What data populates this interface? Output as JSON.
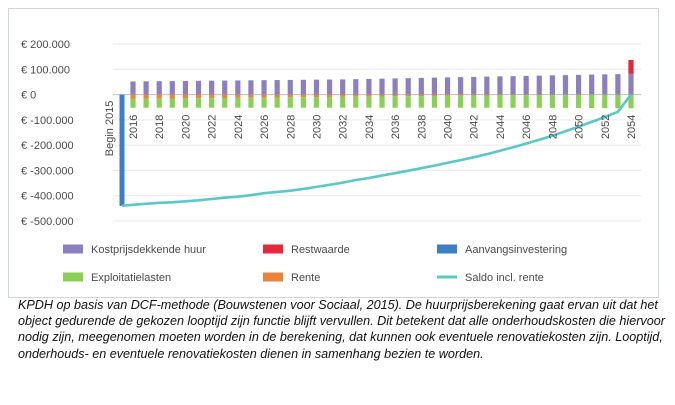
{
  "chart_data": {
    "type": "bar",
    "title": "",
    "xlabel": "",
    "ylabel": "",
    "ylim": [
      -500000,
      200000
    ],
    "y_ticks": [
      200000,
      100000,
      0,
      -100000,
      -200000,
      -300000,
      -400000,
      -500000
    ],
    "y_tick_labels": [
      "€ 200.000",
      "€ 100.000",
      "€ 0",
      "€ -100.000",
      "€ -200.000",
      "€ -300.000",
      "€ -400.000",
      "€ -500.000"
    ],
    "x_tick_labels": [
      "Begin 2015",
      "2016",
      "2018",
      "2020",
      "2022",
      "2024",
      "2026",
      "2028",
      "2030",
      "2032",
      "2034",
      "2036",
      "2038",
      "2040",
      "2042",
      "2044",
      "2046",
      "2048",
      "2050",
      "2052",
      "2054"
    ],
    "years": [
      2016,
      2017,
      2018,
      2019,
      2020,
      2021,
      2022,
      2023,
      2024,
      2025,
      2026,
      2027,
      2028,
      2029,
      2030,
      2031,
      2032,
      2033,
      2034,
      2035,
      2036,
      2037,
      2038,
      2039,
      2040,
      2041,
      2042,
      2043,
      2044,
      2045,
      2046,
      2047,
      2048,
      2049,
      2050,
      2051,
      2052,
      2053,
      2054
    ],
    "series": [
      {
        "name": "Kostprijsdekkende huur",
        "color": "#8c7fbf",
        "values": [
          52000,
          52500,
          53000,
          53500,
          54000,
          54500,
          55000,
          55500,
          56000,
          56500,
          57000,
          57500,
          58000,
          58500,
          59000,
          59500,
          60000,
          61000,
          62000,
          63000,
          64000,
          65000,
          66000,
          67000,
          68000,
          69000,
          70000,
          71000,
          72000,
          73000,
          74000,
          75000,
          76000,
          77000,
          78000,
          79000,
          80000,
          81000,
          82000
        ]
      },
      {
        "name": "Exploitatielasten",
        "color": "#8bcf57",
        "values": [
          -35000,
          -35500,
          -36000,
          -36500,
          -37000,
          -37500,
          -38000,
          -38500,
          -39000,
          -39500,
          -40000,
          -40500,
          -41000,
          -41500,
          -42000,
          -42500,
          -43000,
          -43500,
          -44000,
          -44500,
          -45000,
          -45500,
          -46000,
          -46500,
          -47000,
          -47500,
          -48000,
          -48500,
          -49000,
          -49500,
          -50000,
          -50500,
          -51000,
          -51500,
          -52000,
          -52500,
          -53000,
          -53500,
          -54000
        ]
      },
      {
        "name": "Rente",
        "color": "#e8853a",
        "values": [
          -17000,
          -16500,
          -16000,
          -15500,
          -15000,
          -14500,
          -14000,
          -13500,
          -13000,
          -12500,
          -12000,
          -11500,
          -11000,
          -10500,
          -10000,
          -9500,
          -9000,
          -8500,
          -8000,
          -7500,
          -7000,
          -6500,
          -6000,
          -5500,
          -5000,
          -4500,
          -4000,
          -3600,
          -3200,
          -2800,
          -2400,
          -2000,
          -1600,
          -1200,
          -900,
          -600,
          -400,
          -200,
          -100
        ]
      },
      {
        "name": "Restwaarde",
        "color": "#e3283a",
        "values": [
          0,
          0,
          0,
          0,
          0,
          0,
          0,
          0,
          0,
          0,
          0,
          0,
          0,
          0,
          0,
          0,
          0,
          0,
          0,
          0,
          0,
          0,
          0,
          0,
          0,
          0,
          0,
          0,
          0,
          0,
          0,
          0,
          0,
          0,
          0,
          0,
          0,
          0,
          55000
        ]
      },
      {
        "name": "Aanvangsinvestering",
        "color": "#3d7fc4",
        "start_label": "Begin 2015",
        "value": -440000
      },
      {
        "name": "Saldo incl. rente",
        "color": "#5cc7c9",
        "x": [
          2015,
          2016,
          2017,
          2018,
          2019,
          2020,
          2021,
          2022,
          2023,
          2024,
          2025,
          2026,
          2027,
          2028,
          2029,
          2030,
          2031,
          2032,
          2033,
          2034,
          2035,
          2036,
          2037,
          2038,
          2039,
          2040,
          2041,
          2042,
          2043,
          2044,
          2045,
          2046,
          2047,
          2048,
          2049,
          2050,
          2051,
          2052,
          2053,
          2054
        ],
        "values": [
          -440000,
          -436000,
          -432000,
          -428000,
          -426000,
          -422000,
          -418000,
          -413000,
          -408000,
          -404000,
          -398000,
          -390000,
          -385000,
          -380000,
          -373000,
          -365000,
          -357000,
          -348000,
          -338000,
          -330000,
          -320000,
          -311000,
          -301000,
          -291000,
          -281000,
          -270000,
          -259000,
          -248000,
          -236000,
          -222000,
          -208000,
          -194000,
          -179000,
          -163000,
          -145000,
          -127000,
          -108000,
          -89000,
          -68000,
          0
        ]
      }
    ],
    "legend": {
      "placement": "bottom",
      "items": [
        {
          "label": "Kostprijsdekkende huur",
          "color": "#8c7fbf"
        },
        {
          "label": "Restwaarde",
          "color": "#e3283a"
        },
        {
          "label": "Aanvangsinvestering",
          "color": "#3d7fc4"
        },
        {
          "label": "Exploitatielasten",
          "color": "#8bcf57"
        },
        {
          "label": "Rente",
          "color": "#e8853a"
        },
        {
          "label": "Saldo incl. rente",
          "color": "#5cc7c9"
        }
      ]
    }
  },
  "caption": "KPDH op basis van DCF-methode (Bouwstenen voor Sociaal, 2015). De huurprijsberekening gaat ervan uit dat het object gedurende de gekozen looptijd zijn functie blijft vervullen. Dit betekent dat alle onderhoudskosten die hiervoor nodig zijn, meegenomen moeten worden in de berekening, dat kunnen ook eventuele renovatiekosten zijn. Looptijd, onderhouds- en eventuele renovatiekosten dienen in samenhang bezien te worden."
}
